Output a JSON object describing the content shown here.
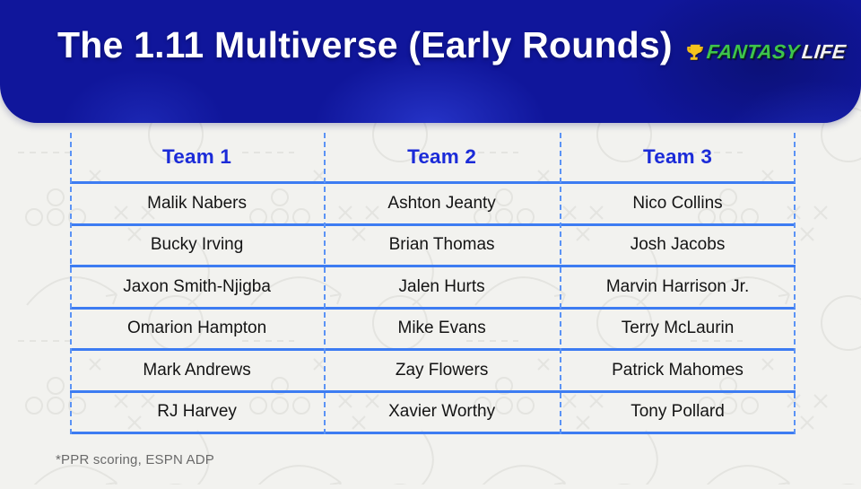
{
  "header": {
    "title": "The 1.11 Multiverse (Early Rounds)",
    "background_color": "#10169b",
    "logo": {
      "icon": "trophy-icon",
      "brand_first": "FANTASY",
      "brand_second": "LIFE",
      "brand_first_color": "#3ec44d",
      "brand_second_color": "#f4f4f4",
      "trophy_color": "#f6c31c"
    }
  },
  "table": {
    "columns": [
      "Team 1",
      "Team 2",
      "Team 3"
    ],
    "rows": [
      [
        "Malik Nabers",
        "Ashton Jeanty",
        "Nico Collins"
      ],
      [
        "Bucky Irving",
        "Brian Thomas",
        "Josh Jacobs"
      ],
      [
        "Jaxon Smith-Njigba",
        "Jalen Hurts",
        "Marvin Harrison Jr."
      ],
      [
        "Omarion Hampton",
        "Mike Evans",
        "Terry McLaurin"
      ],
      [
        "Mark Andrews",
        "Zay Flowers",
        "Patrick Mahomes"
      ],
      [
        "RJ Harvey",
        "Xavier Worthy",
        "Tony Pollard"
      ]
    ],
    "header_text_color": "#1b2bd8",
    "line_color": "#3d7cf2",
    "divider_style": "dashed"
  },
  "footer": {
    "note": "*PPR scoring, ESPN ADP"
  },
  "chart_data": {
    "type": "table",
    "title": "The 1.11 Multiverse (Early Rounds)",
    "columns": [
      "Team 1",
      "Team 2",
      "Team 3"
    ],
    "rows": [
      [
        "Malik Nabers",
        "Ashton Jeanty",
        "Nico Collins"
      ],
      [
        "Bucky Irving",
        "Brian Thomas",
        "Josh Jacobs"
      ],
      [
        "Jaxon Smith-Njigba",
        "Jalen Hurts",
        "Marvin Harrison Jr."
      ],
      [
        "Omarion Hampton",
        "Mike Evans",
        "Terry McLaurin"
      ],
      [
        "Mark Andrews",
        "Zay Flowers",
        "Patrick Mahomes"
      ],
      [
        "RJ Harvey",
        "Xavier Worthy",
        "Tony Pollard"
      ]
    ],
    "annotation": "*PPR scoring, ESPN ADP"
  }
}
